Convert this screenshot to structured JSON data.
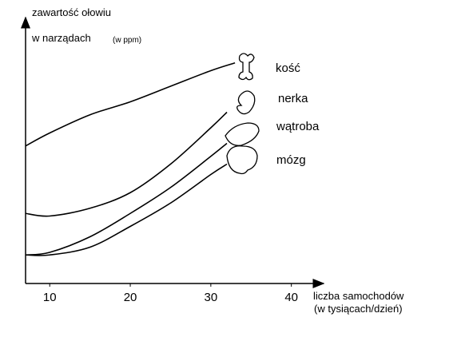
{
  "chart_data": {
    "type": "line",
    "ylabel": [
      "zawartość ołowiu",
      "w narządach"
    ],
    "ylabel_unit": "(w ppm)",
    "xlabel": [
      "liczba samochodów",
      "(w tysiącach/dzień)"
    ],
    "xlim": [
      7,
      44
    ],
    "ylim": [
      0,
      100
    ],
    "xticks": [
      10,
      20,
      30,
      40
    ],
    "series": [
      {
        "name": "kość",
        "color": "#000000",
        "x": [
          7,
          10,
          15,
          20,
          25,
          30,
          33
        ],
        "values": [
          53,
          58,
          65,
          70,
          76,
          82,
          85
        ]
      },
      {
        "name": "nerka",
        "color": "#000000",
        "x": [
          7,
          10,
          15,
          20,
          25,
          30,
          32
        ],
        "values": [
          27,
          26,
          29,
          35,
          46,
          60,
          66
        ]
      },
      {
        "name": "wątroba",
        "color": "#000000",
        "x": [
          7,
          10,
          15,
          20,
          25,
          30,
          32
        ],
        "values": [
          11,
          12,
          18,
          27,
          37,
          49,
          54
        ]
      },
      {
        "name": "mózg",
        "color": "#000000",
        "x": [
          7,
          10,
          15,
          20,
          25,
          30,
          32
        ],
        "values": [
          11,
          11,
          14,
          22,
          31,
          42,
          46
        ]
      }
    ]
  }
}
